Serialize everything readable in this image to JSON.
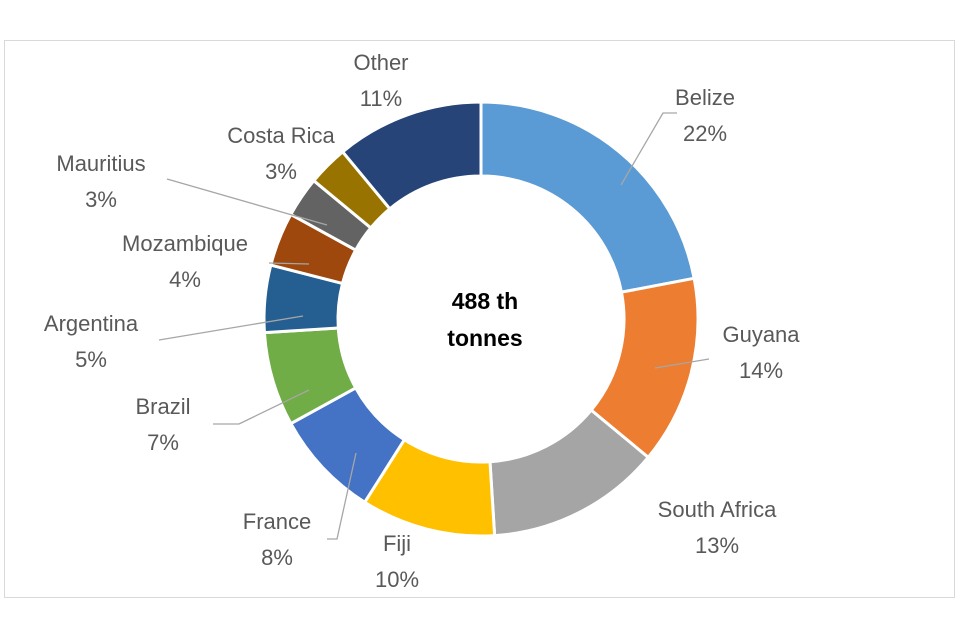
{
  "chart_data": {
    "type": "pie",
    "donut": true,
    "center_label_lines": [
      "488 th",
      "tonnes"
    ],
    "unit": "%",
    "slices": [
      {
        "label": "Belize",
        "value": 22,
        "color": "#5B9BD5"
      },
      {
        "label": "Guyana",
        "value": 14,
        "color": "#ED7D31"
      },
      {
        "label": "South Africa",
        "value": 13,
        "color": "#A5A5A5"
      },
      {
        "label": "Fiji",
        "value": 10,
        "color": "#FFC000"
      },
      {
        "label": "France",
        "value": 8,
        "color": "#4472C4"
      },
      {
        "label": "Brazil",
        "value": 7,
        "color": "#70AD47"
      },
      {
        "label": "Argentina",
        "value": 5,
        "color": "#255E91"
      },
      {
        "label": "Mozambique",
        "value": 4,
        "color": "#9E480E"
      },
      {
        "label": "Mauritius",
        "value": 3,
        "color": "#636363"
      },
      {
        "label": "Costa Rica",
        "value": 3,
        "color": "#997300"
      },
      {
        "label": "Other",
        "value": 11,
        "color": "#264478"
      }
    ],
    "legend": "none"
  }
}
